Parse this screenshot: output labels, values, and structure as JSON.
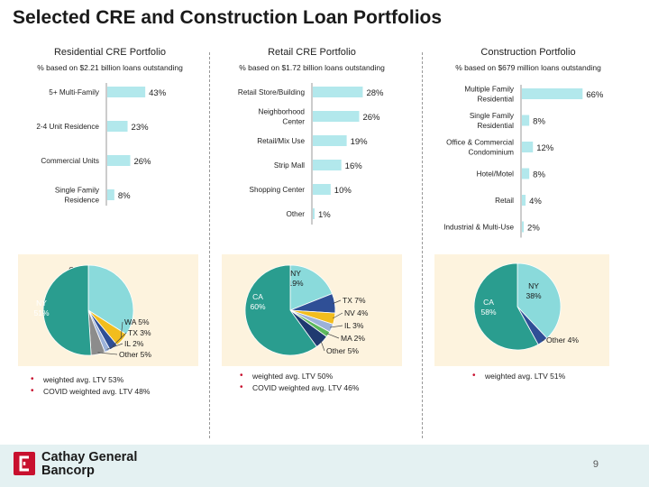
{
  "page": {
    "title": "Selected CRE and Construction Loan Portfolios",
    "page_number": "9",
    "logo": "Cathay General Bancorp",
    "logo_line1": "Cathay General",
    "logo_line2": "Bancorp"
  },
  "colors": {
    "bar": "#b2e8ec",
    "axis": "#999999",
    "pie_bg": "#fdf3de",
    "bullet": "#c8102e"
  },
  "panels": [
    {
      "title": "Residential CRE Portfolio",
      "subtitle": "% based on $2.21 billion loans outstanding",
      "bullets": [
        "weighted avg. LTV 53%",
        "COVID weighted avg. LTV 48%"
      ]
    },
    {
      "title": "Retail CRE Portfolio",
      "subtitle": "% based on $1.72 billion loans outstanding",
      "bullets": [
        "weighted avg. LTV 50%",
        "COVID weighted avg. LTV 46%"
      ]
    },
    {
      "title": "Construction Portfolio",
      "subtitle": "% based on $679 million loans outstanding",
      "bullets": [
        "weighted avg. LTV 51%"
      ]
    }
  ],
  "chart_data": [
    {
      "type": "bar",
      "orientation": "horizontal",
      "title": "Residential CRE Portfolio",
      "subtitle": "% based on $2.21 billion loans outstanding",
      "categories": [
        "5+ Multi-Family",
        "2-4 Unit Residence",
        "Commercial Units",
        "Single Family Residence"
      ],
      "labels": [
        [
          "5+ Multi-Family"
        ],
        [
          "2-4 Unit Residence"
        ],
        [
          "Commercial Units"
        ],
        [
          "Single Family",
          "Residence"
        ]
      ],
      "values": [
        43,
        23,
        26,
        8
      ],
      "value_labels": [
        "43%",
        "23%",
        "26%",
        "8%"
      ],
      "xlim": [
        0,
        100
      ]
    },
    {
      "type": "bar",
      "orientation": "horizontal",
      "title": "Retail CRE Portfolio",
      "subtitle": "% based on $1.72 billion loans outstanding",
      "categories": [
        "Retail Store/Building",
        "Neighborhood Center",
        "Retail/Mix Use",
        "Strip Mall",
        "Shopping Center",
        "Other"
      ],
      "labels": [
        [
          "Retail Store/Building"
        ],
        [
          "Neighborhood",
          "Center"
        ],
        [
          "Retail/Mix Use"
        ],
        [
          "Strip Mall"
        ],
        [
          "Shopping Center"
        ],
        [
          "Other"
        ]
      ],
      "values": [
        28,
        26,
        19,
        16,
        10,
        1
      ],
      "value_labels": [
        "28%",
        "26%",
        "19%",
        "16%",
        "10%",
        "1%"
      ],
      "xlim": [
        0,
        100
      ]
    },
    {
      "type": "bar",
      "orientation": "horizontal",
      "title": "Construction Portfolio",
      "subtitle": "% based on $679 million loans outstanding",
      "categories": [
        "Multiple Family Residential",
        "Single Family Residential",
        "Office & Commercial Condominium",
        "Hotel/Motel",
        "Retail",
        "Industrial & Multi-Use"
      ],
      "labels": [
        [
          "Multiple Family",
          "Residential"
        ],
        [
          "Single Family",
          "Residential"
        ],
        [
          "Office & Commercial",
          "Condominium"
        ],
        [
          "Hotel/Motel"
        ],
        [
          "Retail"
        ],
        [
          "Industrial & Multi-Use"
        ]
      ],
      "values": [
        66,
        8,
        12,
        8,
        4,
        2
      ],
      "value_labels": [
        "66%",
        "8%",
        "12%",
        "8%",
        "4%",
        "2%"
      ],
      "xlim": [
        0,
        100
      ]
    },
    {
      "type": "pie",
      "title": "Residential CRE Portfolio",
      "slices": [
        {
          "label": "CA",
          "value": 34,
          "text": "CA 34%",
          "color": "#8adadb"
        },
        {
          "label": "WA",
          "value": 5,
          "text": "WA  5%",
          "color": "#f2bd1d"
        },
        {
          "label": "TX",
          "value": 3,
          "text": "TX  3%",
          "color": "#2f4f96"
        },
        {
          "label": "IL",
          "value": 2,
          "text": "IL  2%",
          "color": "#9cb2d9"
        },
        {
          "label": "Other",
          "value": 5,
          "text": "Other 5%",
          "color": "#8c8c8c"
        },
        {
          "label": "NY",
          "value": 51,
          "text": "NY 51%",
          "color": "#2a9d8f"
        }
      ]
    },
    {
      "type": "pie",
      "title": "Retail CRE Portfolio",
      "slices": [
        {
          "label": "NY",
          "value": 19,
          "text": "NY 19%",
          "color": "#8adadb"
        },
        {
          "label": "TX",
          "value": 7,
          "text": "TX  7%",
          "color": "#2f4f96"
        },
        {
          "label": "NV",
          "value": 4,
          "text": "NV 4%",
          "color": "#f2bd1d"
        },
        {
          "label": "IL",
          "value": 3,
          "text": "IL  3%",
          "color": "#9cb2d9"
        },
        {
          "label": "MA",
          "value": 2,
          "text": "MA  2%",
          "color": "#5cb85c"
        },
        {
          "label": "Other",
          "value": 5,
          "text": "Other  5%",
          "color": "#1f3a70"
        },
        {
          "label": "CA",
          "value": 60,
          "text": "CA 60%",
          "color": "#2a9d8f"
        }
      ]
    },
    {
      "type": "pie",
      "title": "Construction Portfolio",
      "slices": [
        {
          "label": "NY",
          "value": 38,
          "text": "NY 38%",
          "color": "#8adadb"
        },
        {
          "label": "Other",
          "value": 4,
          "text": "Other 4%",
          "color": "#2f4f96"
        },
        {
          "label": "CA",
          "value": 58,
          "text": "CA 58%",
          "color": "#2a9d8f"
        }
      ]
    }
  ]
}
